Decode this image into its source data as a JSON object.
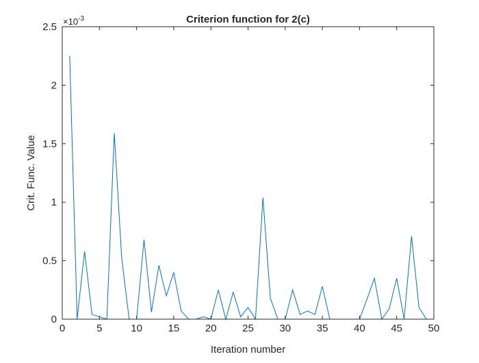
{
  "chart_data": {
    "type": "line",
    "title": "Criterion function for 2(c)",
    "xlabel": "Iteration number",
    "ylabel": "Crit. Func. Value",
    "y_exponent_label": "×10",
    "y_exponent_power": "-3",
    "xlim": [
      0,
      50
    ],
    "ylim": [
      0,
      2.5
    ],
    "x_ticks": [
      0,
      5,
      10,
      15,
      20,
      25,
      30,
      35,
      40,
      45,
      50
    ],
    "y_ticks": [
      0,
      0.5,
      1,
      1.5,
      2,
      2.5
    ],
    "x_tick_labels": [
      "0",
      "5",
      "10",
      "15",
      "20",
      "25",
      "30",
      "35",
      "40",
      "45",
      "50"
    ],
    "y_tick_labels": [
      "0",
      "0.5",
      "1",
      "1.5",
      "2",
      "2.5"
    ],
    "grid": false,
    "line_color": "#0072BD",
    "series": [
      {
        "x": [
          1,
          2,
          3,
          4,
          5,
          6,
          7,
          8,
          9,
          10,
          11,
          12,
          13,
          14,
          15,
          16,
          17,
          18,
          19,
          20,
          21,
          22,
          23,
          24,
          25,
          26,
          27,
          28,
          29,
          30,
          31,
          32,
          33,
          34,
          35,
          36,
          37,
          38,
          39,
          40,
          41,
          42,
          43,
          44,
          45,
          46,
          47,
          48,
          49
        ],
        "values": [
          2.25,
          0,
          0.58,
          0.04,
          0.02,
          0,
          1.59,
          0.52,
          0,
          0,
          0.68,
          0.06,
          0.46,
          0.2,
          0.4,
          0.07,
          0,
          0,
          0.02,
          0,
          0.25,
          0,
          0.23,
          0.02,
          0.1,
          0,
          1.04,
          0.18,
          0,
          0,
          0.25,
          0.04,
          0.07,
          0.04,
          0.28,
          0,
          0,
          0,
          0,
          0,
          0.17,
          0.35,
          0,
          0.09,
          0.35,
          0,
          0.71,
          0.1,
          0
        ]
      }
    ]
  }
}
